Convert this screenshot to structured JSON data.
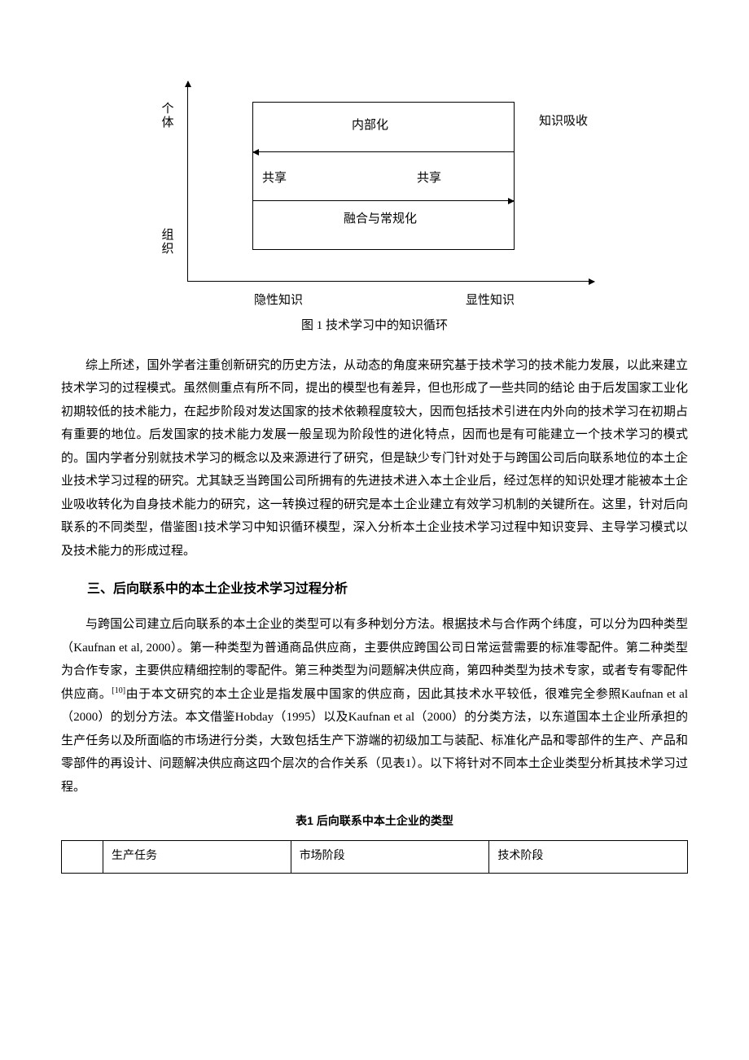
{
  "figure1": {
    "caption": "图 1  技术学习中的知识循环",
    "axes": {
      "y_top": "个体",
      "y_bottom": "组织",
      "x_left": "隐性知识",
      "x_right": "显性知识"
    },
    "outer_right_label": "知识吸收",
    "inner_labels": {
      "top": "内部化",
      "left": "共享",
      "right": "共享",
      "bottom": "融合与常规化"
    },
    "style": {
      "line_color": "#000000",
      "background": "#ffffff",
      "font_size": 15
    }
  },
  "paragraph1": "综上所述，国外学者注重创新研究的历史方法，从动态的角度来研究基于技术学习的技术能力发展，以此来建立技术学习的过程模式。虽然侧重点有所不同，提出的模型也有差异，但也形成了一些共同的结论 由于后发国家工业化初期较低的技术能力，在起步阶段对发达国家的技术依赖程度较大，因而包括技术引进在内外向的技术学习在初期占有重要的地位。后发国家的技术能力发展一般呈现为阶段性的进化特点，因而也是有可能建立一个技术学习的模式的。国内学者分别就技术学习的概念以及来源进行了研究，但是缺少专门针对处于与跨国公司后向联系地位的本土企业技术学习过程的研究。尤其缺乏当跨国公司所拥有的先进技术进入本土企业后，经过怎样的知识处理才能被本土企业吸收转化为自身技术能力的研究，这一转换过程的研究是本土企业建立有效学习机制的关键所在。这里，针对后向联系的不同类型，借鉴图1技术学习中知识循环模型，深入分析本土企业技术学习过程中知识变异、主导学习模式以及技术能力的形成过程。",
  "heading_section3": "三、后向联系中的本土企业技术学习过程分析",
  "paragraph2_pre": "与跨国公司建立后向联系的本土企业的类型可以有多种划分方法。根据技术与合作两个纬度，可以分为四种类型（Kaufnan et al, 2000）。第一种类型为普通商品供应商，主要供应跨国公司日常运营需要的标准零配件。第二种类型为合作专家，主要供应精细控制的零配件。第三种类型为问题解决供应商，第四种类型为技术专家，或者专有零配件供应商。",
  "paragraph2_ref": "[10]",
  "paragraph2_post": "由于本文研究的本土企业是指发展中国家的供应商，因此其技术水平较低，很难完全参照Kaufnan et al（2000）的划分方法。本文借鉴Hobday（1995）以及Kaufnan et al（2000）的分类方法，以东道国本土企业所承担的生产任务以及所面临的市场进行分类，大致包括生产下游端的初级加工与装配、标准化产品和零部件的生产、产品和零部件的再设计、问题解决供应商这四个层次的合作关系（见表1）。以下将针对不同本土企业类型分析其技术学习过程。",
  "table1": {
    "caption": "表1    后向联系中本土企业的类型",
    "columns": [
      "",
      "生产任务",
      "市场阶段",
      "技术阶段"
    ]
  }
}
